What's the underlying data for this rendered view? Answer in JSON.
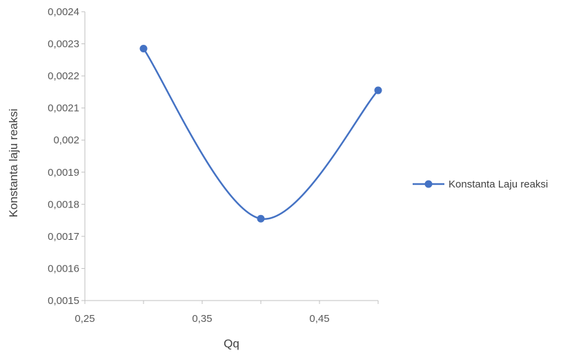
{
  "chart_data": {
    "type": "line",
    "title": "",
    "xlabel": "Qq",
    "ylabel": "Konstanta laju reaksi",
    "xlim": [
      0.25,
      0.5
    ],
    "ylim": [
      0.0015,
      0.0024
    ],
    "x_ticks": [
      "0,25",
      "0,35",
      "0,45"
    ],
    "x_tick_values": [
      0.25,
      0.35,
      0.45
    ],
    "y_ticks": [
      "0,0015",
      "0,0016",
      "0,0017",
      "0,0018",
      "0,0019",
      "0,002",
      "0,0021",
      "0,0022",
      "0,0023",
      "0,0024"
    ],
    "y_tick_values": [
      0.0015,
      0.0016,
      0.0017,
      0.0018,
      0.0019,
      0.002,
      0.0021,
      0.0022,
      0.0023,
      0.0024
    ],
    "grid": false,
    "smooth": true,
    "legend_position": "right",
    "series": [
      {
        "name": "Konstanta Laju reaksi",
        "color": "#4472C4",
        "x": [
          0.3,
          0.4,
          0.5
        ],
        "values": [
          0.002285,
          0.001755,
          0.002155
        ]
      }
    ]
  }
}
